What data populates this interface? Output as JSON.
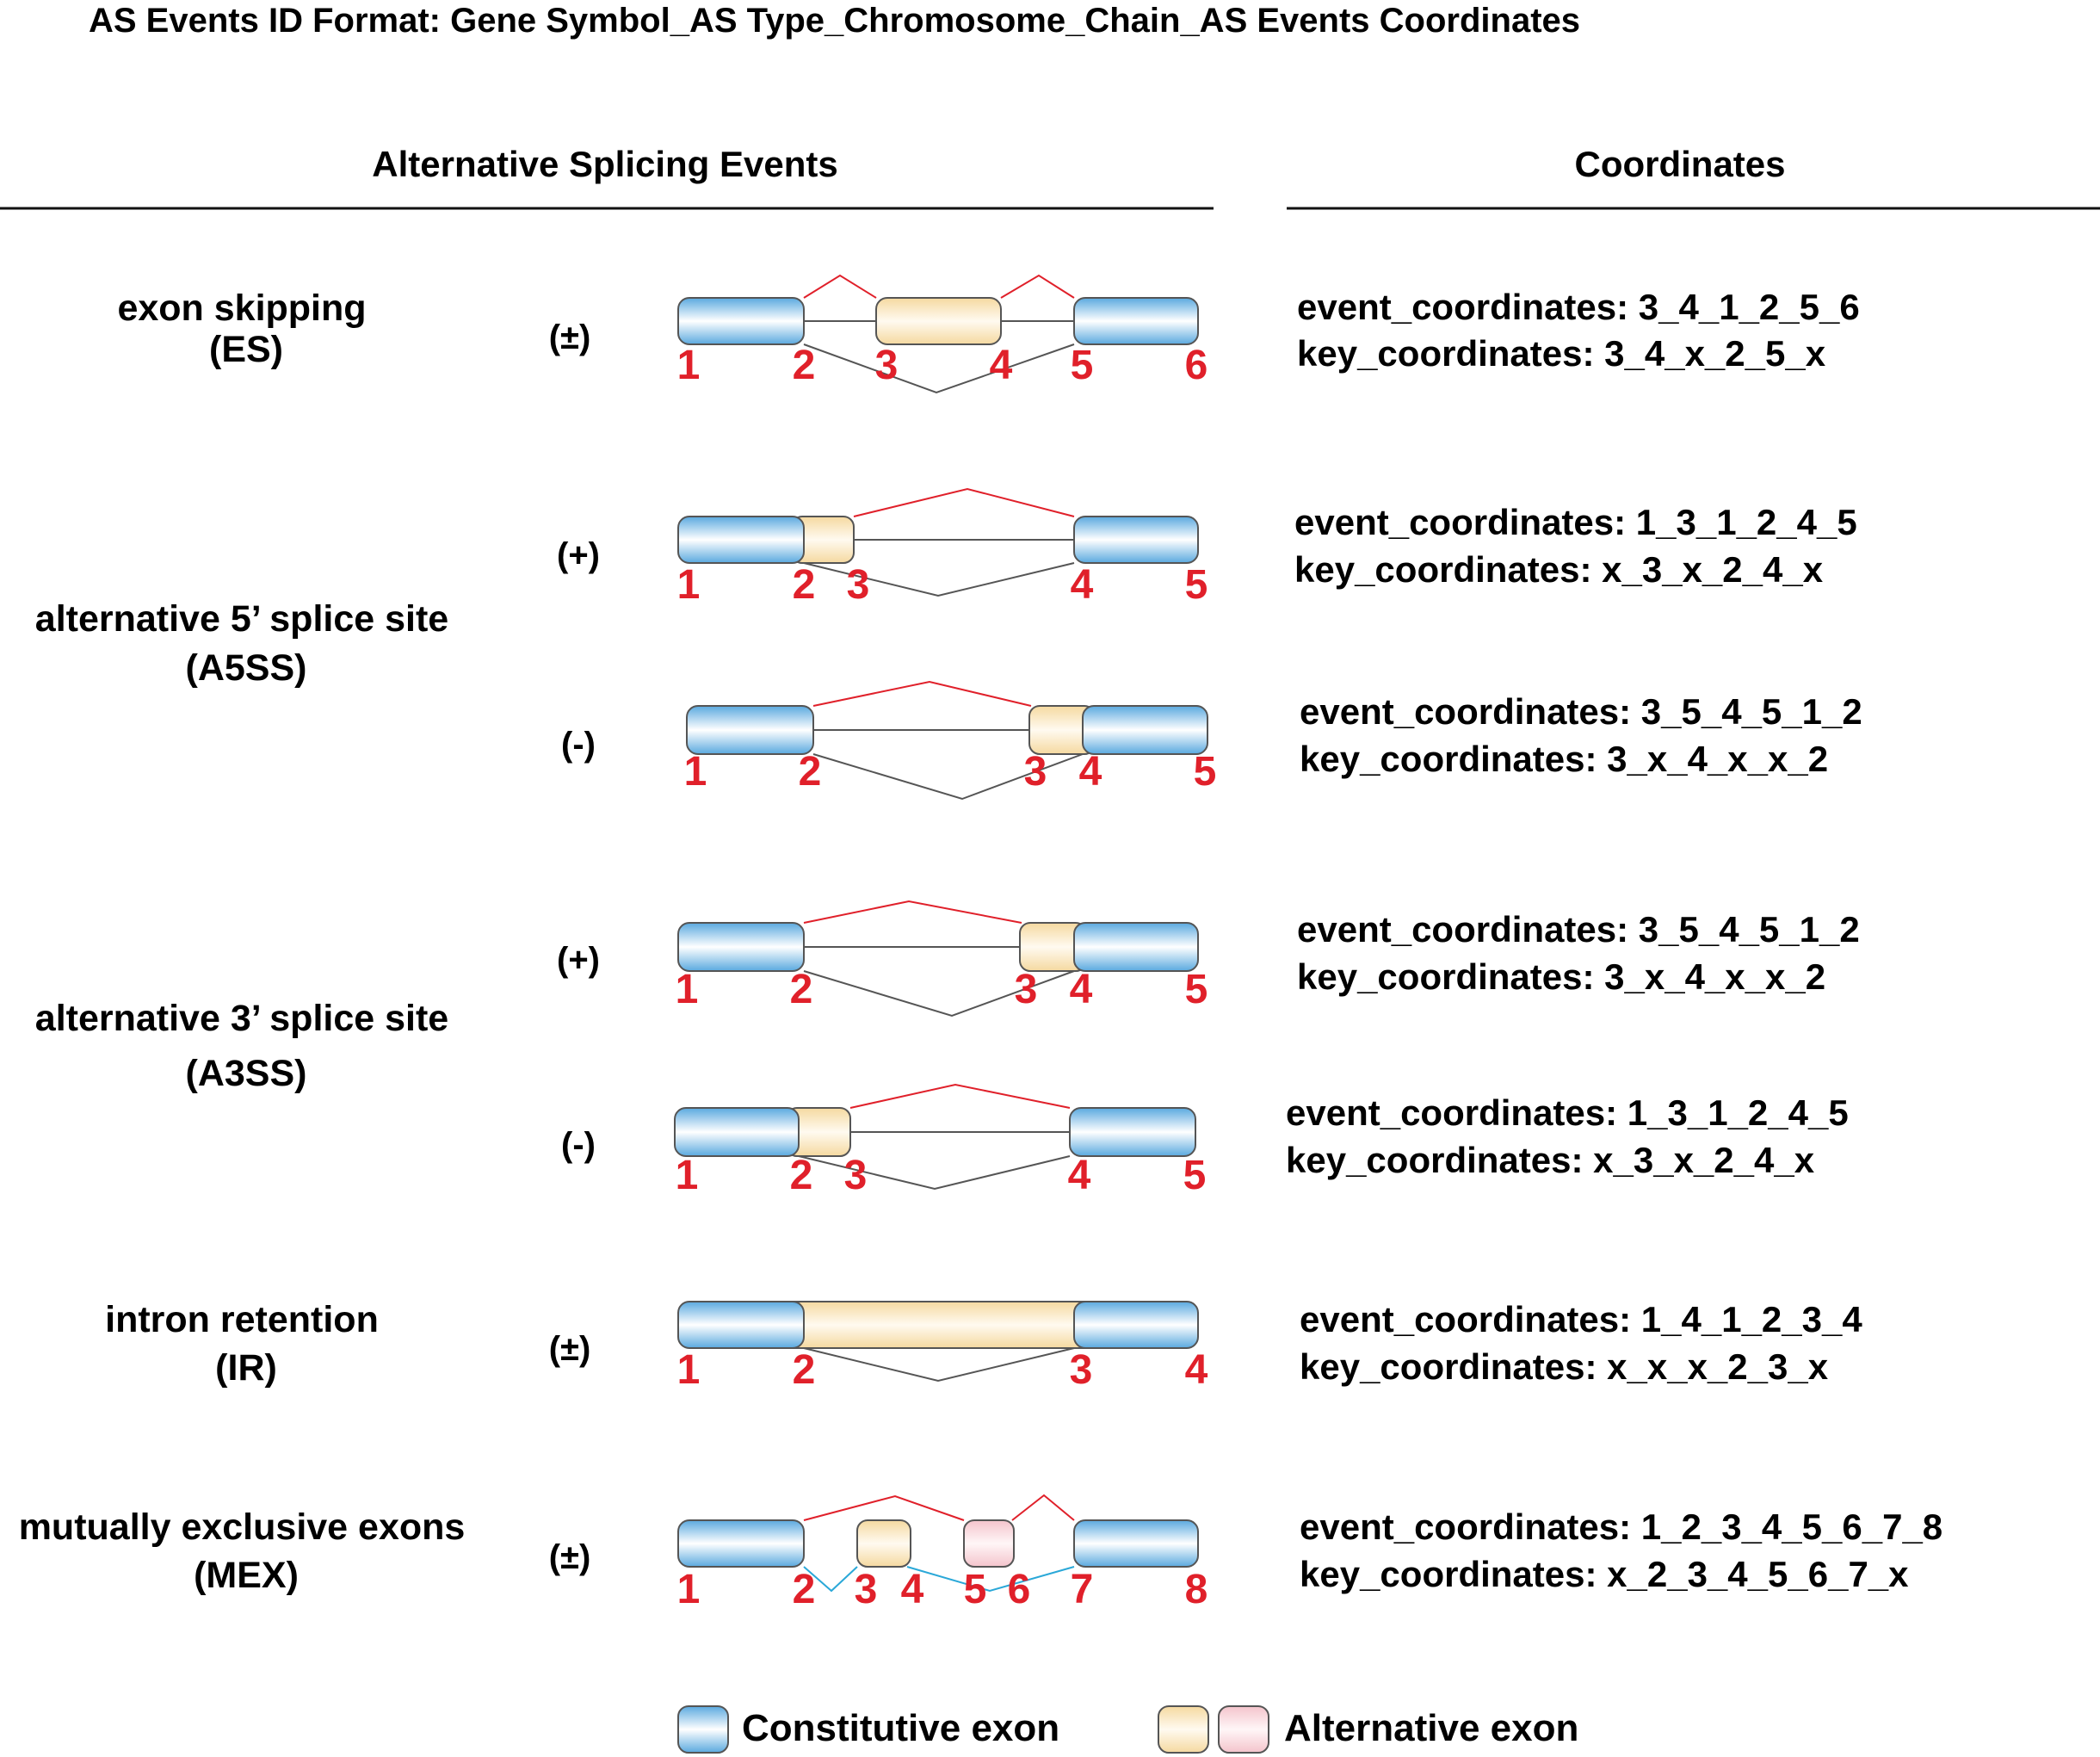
{
  "title": "AS Events ID Format: Gene Symbol_AS Type_Chromosome_Chain_AS Events Coordinates",
  "headers": {
    "events": "Alternative Splicing Events",
    "coordinates": "Coordinates"
  },
  "colors": {
    "constitutive_edge": "#5aa9df",
    "constitutive_mid": "#ffffff",
    "alt_yellow_edge": "#f5d9a0",
    "alt_pink_edge": "#f4c4cc",
    "red_line": "#e0202a",
    "gray_line": "#555555",
    "blue_line": "#2aa8d8",
    "number": "#e0202a"
  },
  "rows": [
    {
      "name_lines": [
        "exon skipping",
        "(ES)"
      ],
      "strand": "(±)",
      "event": "event_coordinates: 3_4_1_2_5_6",
      "key": "key_coordinates: 3_4_x_2_5_x",
      "numbers": [
        "1",
        "2",
        "3",
        "4",
        "5",
        "6"
      ]
    },
    {
      "name_lines": [
        "alternative 5’ splice site",
        "(A5SS)"
      ],
      "strand": "(+)",
      "event": "event_coordinates: 1_3_1_2_4_5",
      "key": "key_coordinates: x_3_x_2_4_x",
      "numbers": [
        "1",
        "2",
        "3",
        "4",
        "5"
      ]
    },
    {
      "strand": "(-)",
      "event": "event_coordinates: 3_5_4_5_1_2",
      "key": "key_coordinates: 3_x_4_x_x_2",
      "numbers": [
        "1",
        "2",
        "3",
        "4",
        "5"
      ]
    },
    {
      "name_lines": [
        "alternative 3’ splice site",
        "(A3SS)"
      ],
      "strand": "(+)",
      "event": "event_coordinates: 3_5_4_5_1_2",
      "key": "key_coordinates: 3_x_4_x_x_2",
      "numbers": [
        "1",
        "2",
        "3",
        "4",
        "5"
      ]
    },
    {
      "strand": "(-)",
      "event": "event_coordinates: 1_3_1_2_4_5",
      "key": "key_coordinates: x_3_x_2_4_x",
      "numbers": [
        "1",
        "2",
        "3",
        "4",
        "5"
      ]
    },
    {
      "name_lines": [
        "intron retention",
        "(IR)"
      ],
      "strand": "(±)",
      "event": "event_coordinates: 1_4_1_2_3_4",
      "key": "key_coordinates: x_x_x_2_3_x",
      "numbers": [
        "1",
        "2",
        "3",
        "4"
      ]
    },
    {
      "name_lines": [
        "mutually exclusive exons",
        "(MEX)"
      ],
      "strand": "(±)",
      "event": "event_coordinates: 1_2_3_4_5_6_7_8",
      "key": "key_coordinates: x_2_3_4_5_6_7_x",
      "numbers": [
        "1",
        "2",
        "3",
        "4",
        "5",
        "6",
        "7",
        "8"
      ]
    }
  ],
  "legend": {
    "constitutive": "Constitutive exon",
    "alternative": "Alternative exon"
  }
}
